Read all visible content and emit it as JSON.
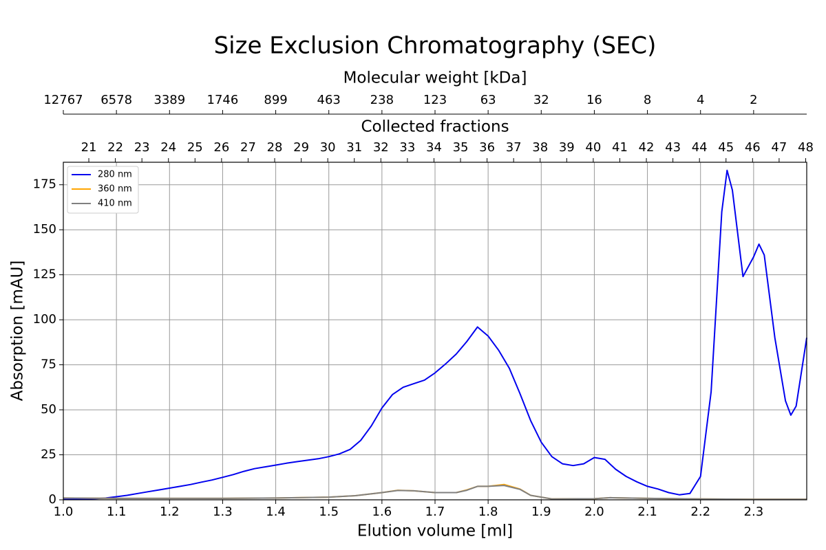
{
  "chart_data": {
    "type": "line",
    "title": "Size Exclusion Chromatography (SEC)",
    "x_label": "Elution volume [ml]",
    "y_label": "Absorption [mAU]",
    "xlim": [
      1.0,
      2.4
    ],
    "ylim": [
      0,
      187.5
    ],
    "xticks": [
      {
        "value": 1.0,
        "label": "1.0"
      },
      1.1,
      1.2,
      1.3,
      1.4,
      1.5,
      1.6,
      1.7,
      1.8,
      1.9,
      {
        "value": 2.0,
        "label": "2.0"
      },
      2.1,
      2.2,
      2.3
    ],
    "yticks": [
      0,
      25,
      50,
      75,
      100,
      125,
      150,
      175
    ],
    "grid": true,
    "legend": "upper left",
    "mw_axis": {
      "label": "Molecular weight [kDa]",
      "x": [
        1.0,
        1.1,
        1.2,
        1.3,
        1.4,
        1.5,
        1.6,
        1.7,
        1.8,
        1.9,
        2.0,
        2.1,
        2.2,
        2.3
      ],
      "labels": [
        12767,
        6578,
        3389,
        1746,
        899,
        463,
        238,
        123,
        63,
        32,
        16,
        8,
        4,
        2
      ]
    },
    "fraction_axis": {
      "label": "Collected fractions",
      "x": [
        1.048,
        1.098,
        1.148,
        1.198,
        1.248,
        1.298,
        1.348,
        1.398,
        1.448,
        1.498,
        1.548,
        1.598,
        1.648,
        1.698,
        1.748,
        1.798,
        1.848,
        1.898,
        1.948,
        1.998,
        2.048,
        2.098,
        2.148,
        2.198,
        2.248,
        2.298,
        2.348,
        2.398
      ],
      "labels": [
        21,
        22,
        23,
        24,
        25,
        26,
        27,
        28,
        29,
        30,
        31,
        32,
        33,
        34,
        35,
        36,
        37,
        38,
        39,
        40,
        41,
        42,
        43,
        44,
        45,
        46,
        47,
        48
      ]
    },
    "series": [
      {
        "name": "280 nm",
        "color": "#0000ee",
        "x": [
          1.0,
          1.02,
          1.04,
          1.06,
          1.08,
          1.1,
          1.12,
          1.14,
          1.16,
          1.18,
          1.2,
          1.22,
          1.24,
          1.26,
          1.28,
          1.3,
          1.32,
          1.34,
          1.36,
          1.38,
          1.4,
          1.42,
          1.44,
          1.46,
          1.48,
          1.5,
          1.52,
          1.54,
          1.56,
          1.58,
          1.6,
          1.62,
          1.64,
          1.66,
          1.68,
          1.7,
          1.72,
          1.74,
          1.76,
          1.78,
          1.8,
          1.82,
          1.84,
          1.86,
          1.88,
          1.9,
          1.92,
          1.94,
          1.96,
          1.98,
          2.0,
          2.02,
          2.04,
          2.06,
          2.08,
          2.1,
          2.12,
          2.14,
          2.16,
          2.18,
          2.2,
          2.22,
          2.24,
          2.25,
          2.26,
          2.28,
          2.3,
          2.31,
          2.32,
          2.34,
          2.36,
          2.37,
          2.38,
          2.4
        ],
        "values": [
          0.5,
          0.5,
          0.5,
          0.6,
          1,
          1.7,
          2.5,
          3.5,
          4.5,
          5.5,
          6.5,
          7.5,
          8.5,
          9.8,
          11,
          12.5,
          14,
          15.8,
          17.3,
          18.3,
          19.3,
          20.3,
          21.2,
          22,
          22.8,
          24,
          25.5,
          28,
          33,
          41,
          51,
          58.5,
          62.5,
          64.5,
          66.5,
          70.5,
          75.5,
          81,
          88,
          96,
          91,
          83,
          73,
          59,
          44,
          32,
          24,
          20,
          19,
          20,
          23.5,
          22.5,
          17,
          13,
          10,
          7.5,
          6,
          4,
          2.8,
          3.5,
          13,
          60,
          160,
          183,
          172,
          124,
          135,
          142,
          136,
          90,
          55,
          47,
          52,
          90
        ]
      },
      {
        "name": "360 nm",
        "color": "#ffa500",
        "x": [
          1.0,
          1.1,
          1.2,
          1.3,
          1.4,
          1.5,
          1.55,
          1.6,
          1.63,
          1.66,
          1.7,
          1.74,
          1.76,
          1.78,
          1.8,
          1.83,
          1.86,
          1.88,
          1.92,
          2.0,
          2.03,
          2.1,
          2.2,
          2.3,
          2.4
        ],
        "values": [
          1,
          0.8,
          0.8,
          0.8,
          1,
          1.5,
          2.3,
          4,
          5.3,
          5,
          4,
          4,
          5.5,
          7.5,
          7.5,
          8.5,
          6,
          2.5,
          0.5,
          0.6,
          1.2,
          0.8,
          0.5,
          0.3,
          0.3
        ]
      },
      {
        "name": "410 nm",
        "color": "#808080",
        "x": [
          1.0,
          1.1,
          1.2,
          1.3,
          1.4,
          1.5,
          1.55,
          1.6,
          1.63,
          1.66,
          1.7,
          1.74,
          1.76,
          1.78,
          1.8,
          1.83,
          1.86,
          1.88,
          1.92,
          2.0,
          2.03,
          2.1,
          2.2,
          2.3,
          2.4
        ],
        "values": [
          1,
          0.8,
          0.8,
          0.8,
          1,
          1.5,
          2.3,
          4,
          5.2,
          5,
          4,
          4,
          5.3,
          7.5,
          7.5,
          8,
          5.8,
          2.5,
          0.5,
          0.6,
          1.2,
          0.8,
          0.5,
          0.3,
          0.3
        ]
      }
    ]
  }
}
